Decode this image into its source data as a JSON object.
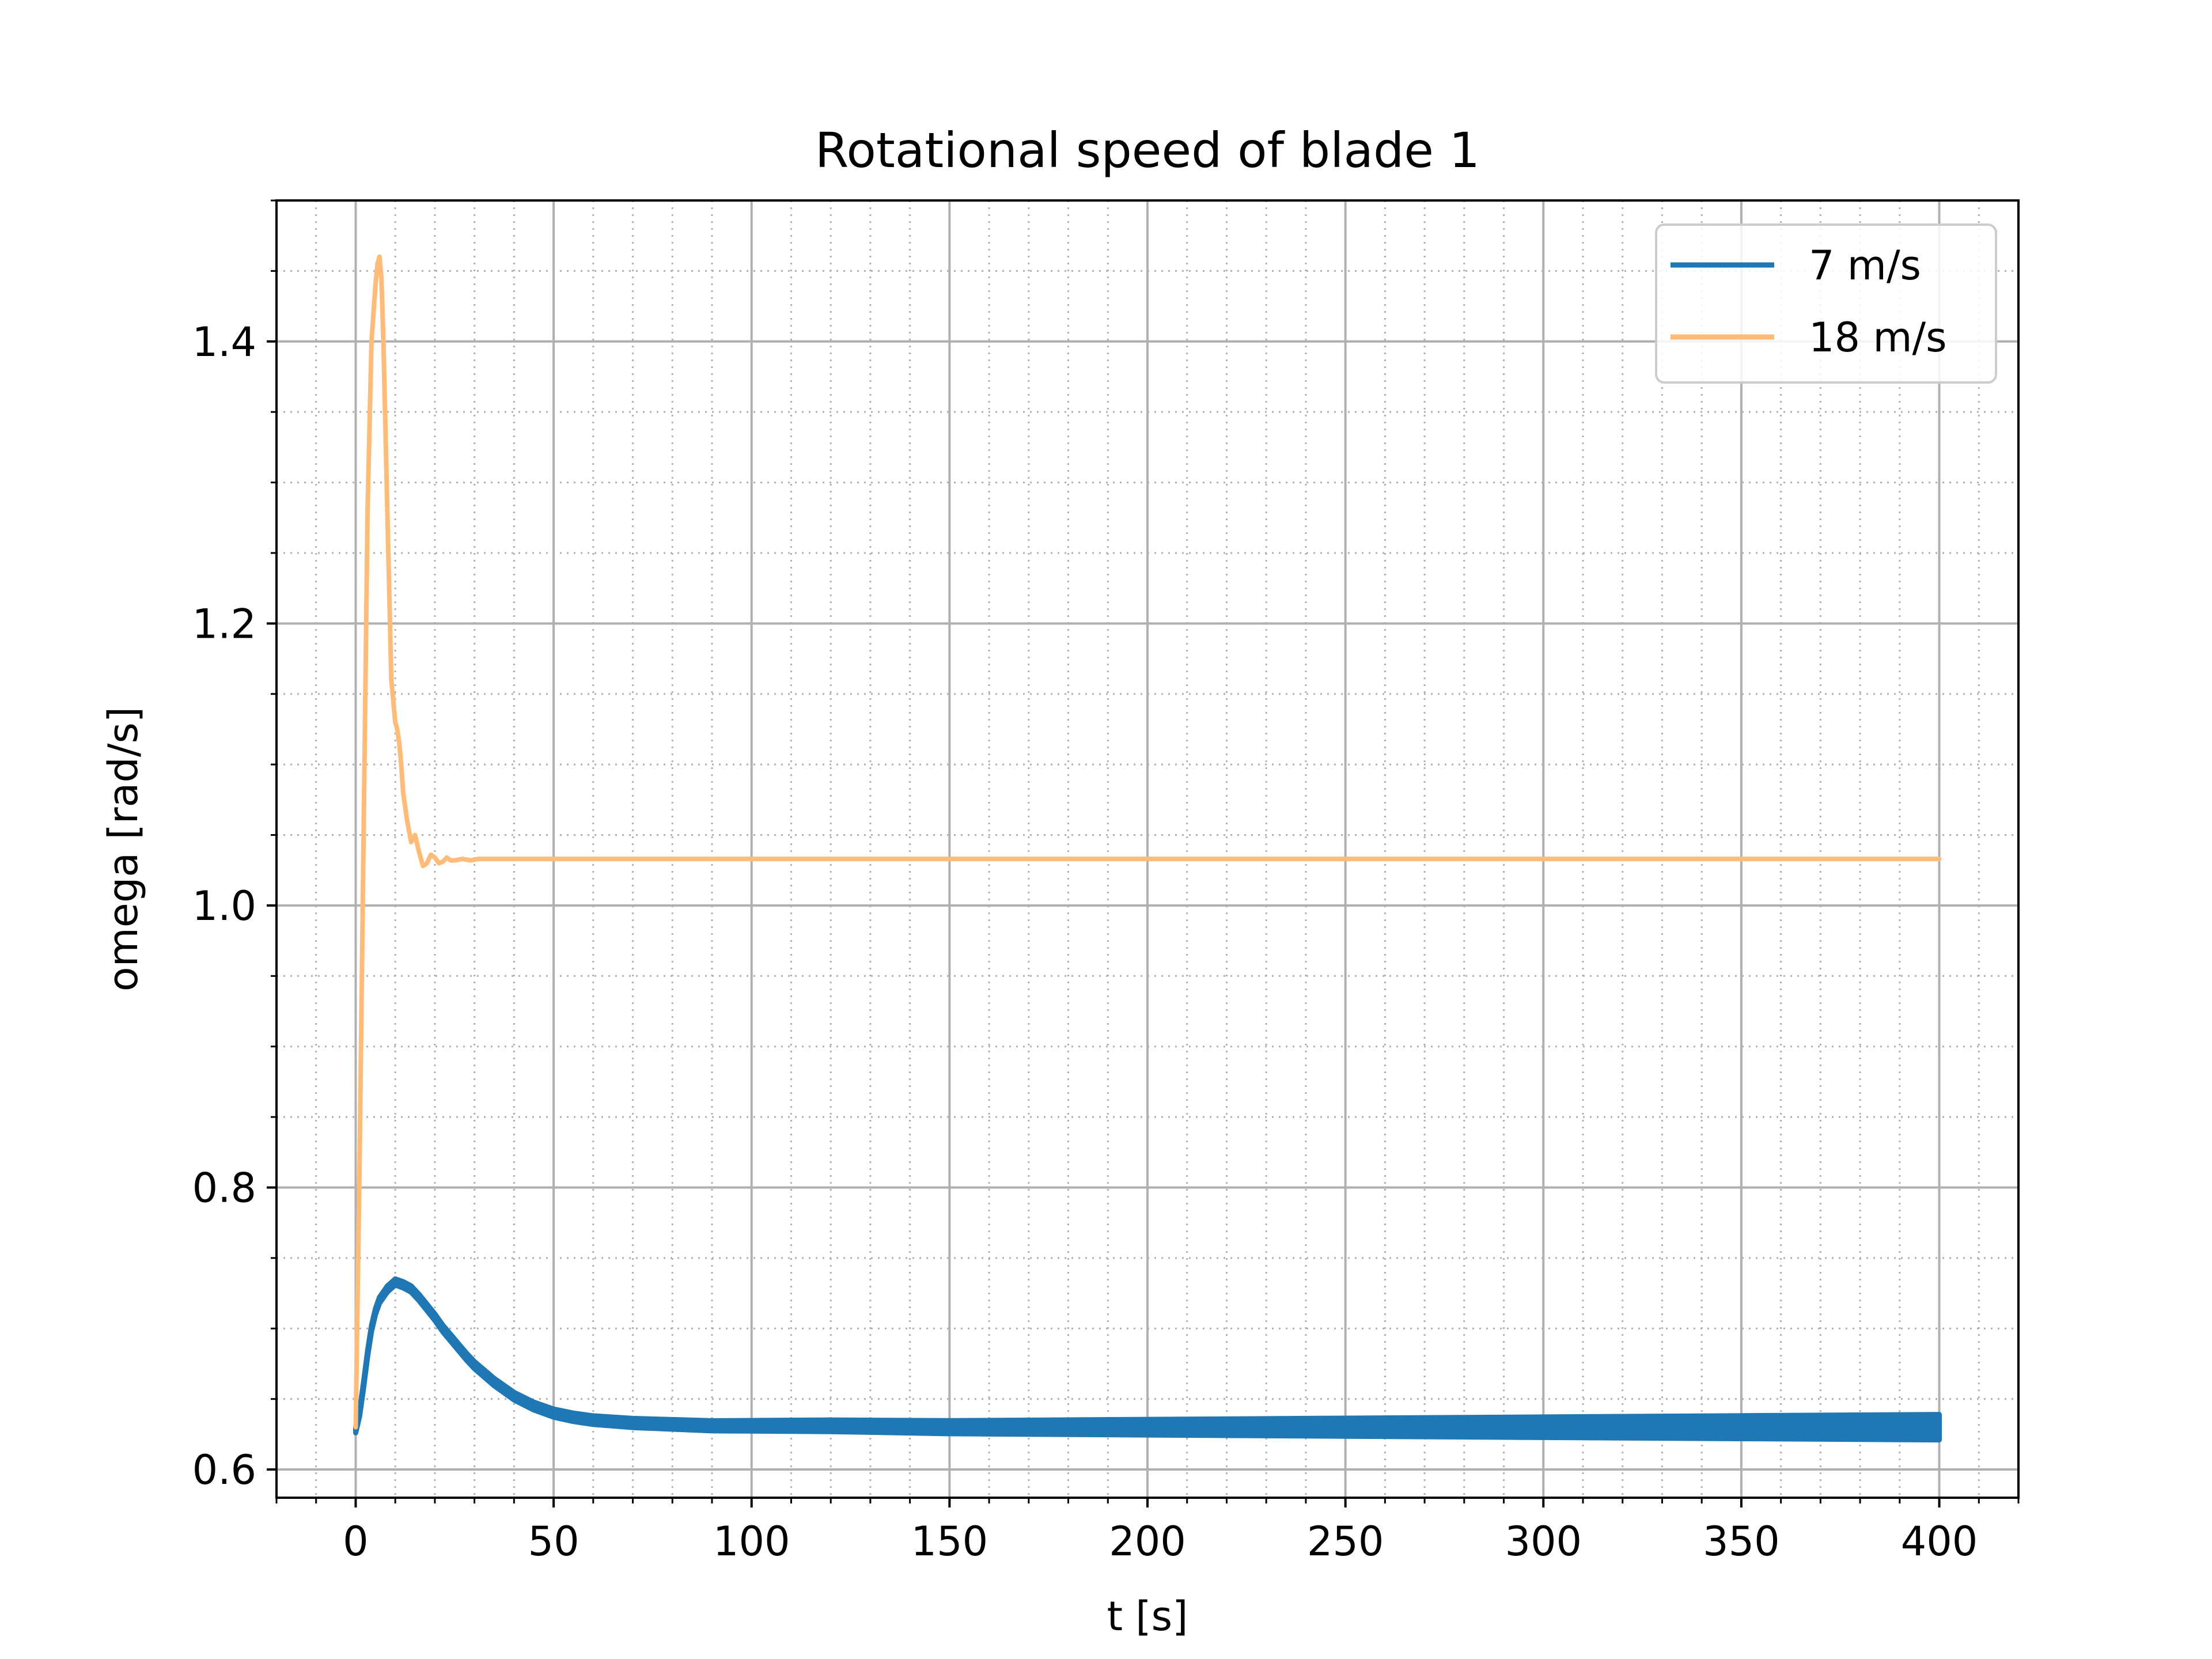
{
  "chart_data": {
    "type": "line",
    "title": "Rotational speed of blade 1",
    "xlabel": "t [s]",
    "ylabel": "omega [rad/s]",
    "xlim": [
      -20,
      420
    ],
    "ylim": [
      0.58,
      1.5
    ],
    "xticks": [
      0,
      50,
      100,
      150,
      200,
      250,
      300,
      350,
      400
    ],
    "xtick_labels": [
      "0",
      "50",
      "100",
      "150",
      "200",
      "250",
      "300",
      "350",
      "400"
    ],
    "yticks": [
      0.6,
      0.8,
      1.0,
      1.2,
      1.4
    ],
    "ytick_labels": [
      "0.6",
      "0.8",
      "1.0",
      "1.2",
      "1.4"
    ],
    "grid": {
      "major": true,
      "minor": true
    },
    "legend": "top-right",
    "series": [
      {
        "name": "7 m/s",
        "color": "#1f77b4",
        "band_width_start": 0.004,
        "band_width_end": 0.018,
        "x": [
          0,
          1,
          2,
          3,
          4,
          5,
          6,
          8,
          10,
          12,
          14,
          16,
          18,
          20,
          22,
          25,
          28,
          30,
          35,
          40,
          45,
          50,
          55,
          60,
          70,
          80,
          90,
          100,
          120,
          150,
          200,
          250,
          300,
          350,
          400
        ],
        "y": [
          0.628,
          0.64,
          0.66,
          0.682,
          0.7,
          0.712,
          0.72,
          0.728,
          0.733,
          0.731,
          0.728,
          0.722,
          0.715,
          0.708,
          0.7,
          0.69,
          0.68,
          0.674,
          0.662,
          0.652,
          0.645,
          0.64,
          0.637,
          0.635,
          0.633,
          0.632,
          0.631,
          0.631,
          0.631,
          0.63,
          0.63,
          0.63,
          0.63,
          0.63,
          0.63
        ]
      },
      {
        "name": "18 m/s",
        "color": "#ffbb78",
        "x": [
          0,
          1,
          2,
          3,
          4,
          5,
          5.5,
          6,
          6.5,
          7,
          8,
          9,
          10,
          10.5,
          11,
          11.5,
          12,
          13,
          14,
          15,
          16,
          17,
          18,
          19,
          20,
          21,
          22,
          23,
          24,
          25,
          27,
          29,
          31,
          35,
          40,
          50,
          100,
          200,
          300,
          400
        ],
        "y": [
          0.63,
          0.82,
          1.05,
          1.28,
          1.4,
          1.44,
          1.455,
          1.46,
          1.445,
          1.4,
          1.28,
          1.16,
          1.13,
          1.125,
          1.115,
          1.1,
          1.08,
          1.06,
          1.045,
          1.05,
          1.038,
          1.028,
          1.03,
          1.036,
          1.034,
          1.03,
          1.031,
          1.034,
          1.032,
          1.032,
          1.033,
          1.032,
          1.033,
          1.033,
          1.033,
          1.033,
          1.033,
          1.033,
          1.033,
          1.033
        ]
      }
    ]
  }
}
